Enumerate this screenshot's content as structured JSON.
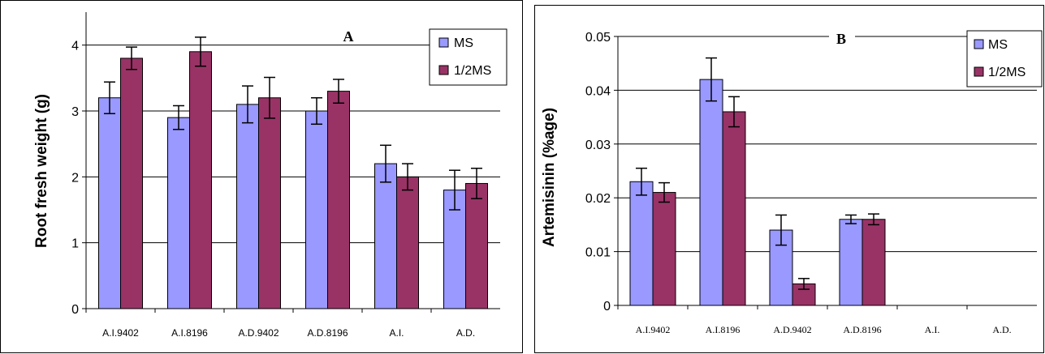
{
  "colors": {
    "ms": "#9999ff",
    "half_ms": "#993366",
    "grid": "#000000",
    "error_bar": "#000000"
  },
  "chart_data": [
    {
      "type": "bar",
      "title": "A",
      "xlabel": "",
      "ylabel": "Root fresh weight (g)",
      "ylim": [
        0,
        4.5
      ],
      "yticks": [
        "0",
        "1",
        "2",
        "3",
        "4"
      ],
      "grid": true,
      "legend_position": "top-right",
      "categories": [
        "A.I.9402",
        "A.I.8196",
        "A.D.9402",
        "A.D.8196",
        "A.I.",
        "A.D."
      ],
      "series": [
        {
          "name": "MS",
          "values": [
            3.2,
            2.9,
            3.1,
            3.0,
            2.2,
            1.8
          ],
          "errors": [
            0.24,
            0.18,
            0.28,
            0.2,
            0.28,
            0.3
          ]
        },
        {
          "name": "1/2MS",
          "values": [
            3.8,
            3.9,
            3.2,
            3.3,
            2.0,
            1.9
          ],
          "errors": [
            0.17,
            0.22,
            0.31,
            0.18,
            0.2,
            0.23
          ]
        }
      ]
    },
    {
      "type": "bar",
      "title": "B",
      "xlabel": "",
      "ylabel": "Artemisinin (%age)",
      "ylim": [
        0,
        0.05
      ],
      "yticks": [
        "0",
        "0.01",
        "0.02",
        "0.03",
        "0.04",
        "0.05"
      ],
      "grid": true,
      "legend_position": "top-right",
      "categories": [
        "A.I.9402",
        "A.I.8196",
        "A.D.9402",
        "A.D.8196",
        "A.I.",
        "A.D."
      ],
      "series": [
        {
          "name": "MS",
          "values": [
            0.023,
            0.042,
            0.014,
            0.016,
            null,
            null
          ],
          "errors": [
            0.0025,
            0.004,
            0.0028,
            0.0008,
            null,
            null
          ]
        },
        {
          "name": "1/2MS",
          "values": [
            0.021,
            0.036,
            0.004,
            0.016,
            null,
            null
          ],
          "errors": [
            0.0018,
            0.0028,
            0.001,
            0.001,
            null,
            null
          ]
        }
      ]
    }
  ]
}
